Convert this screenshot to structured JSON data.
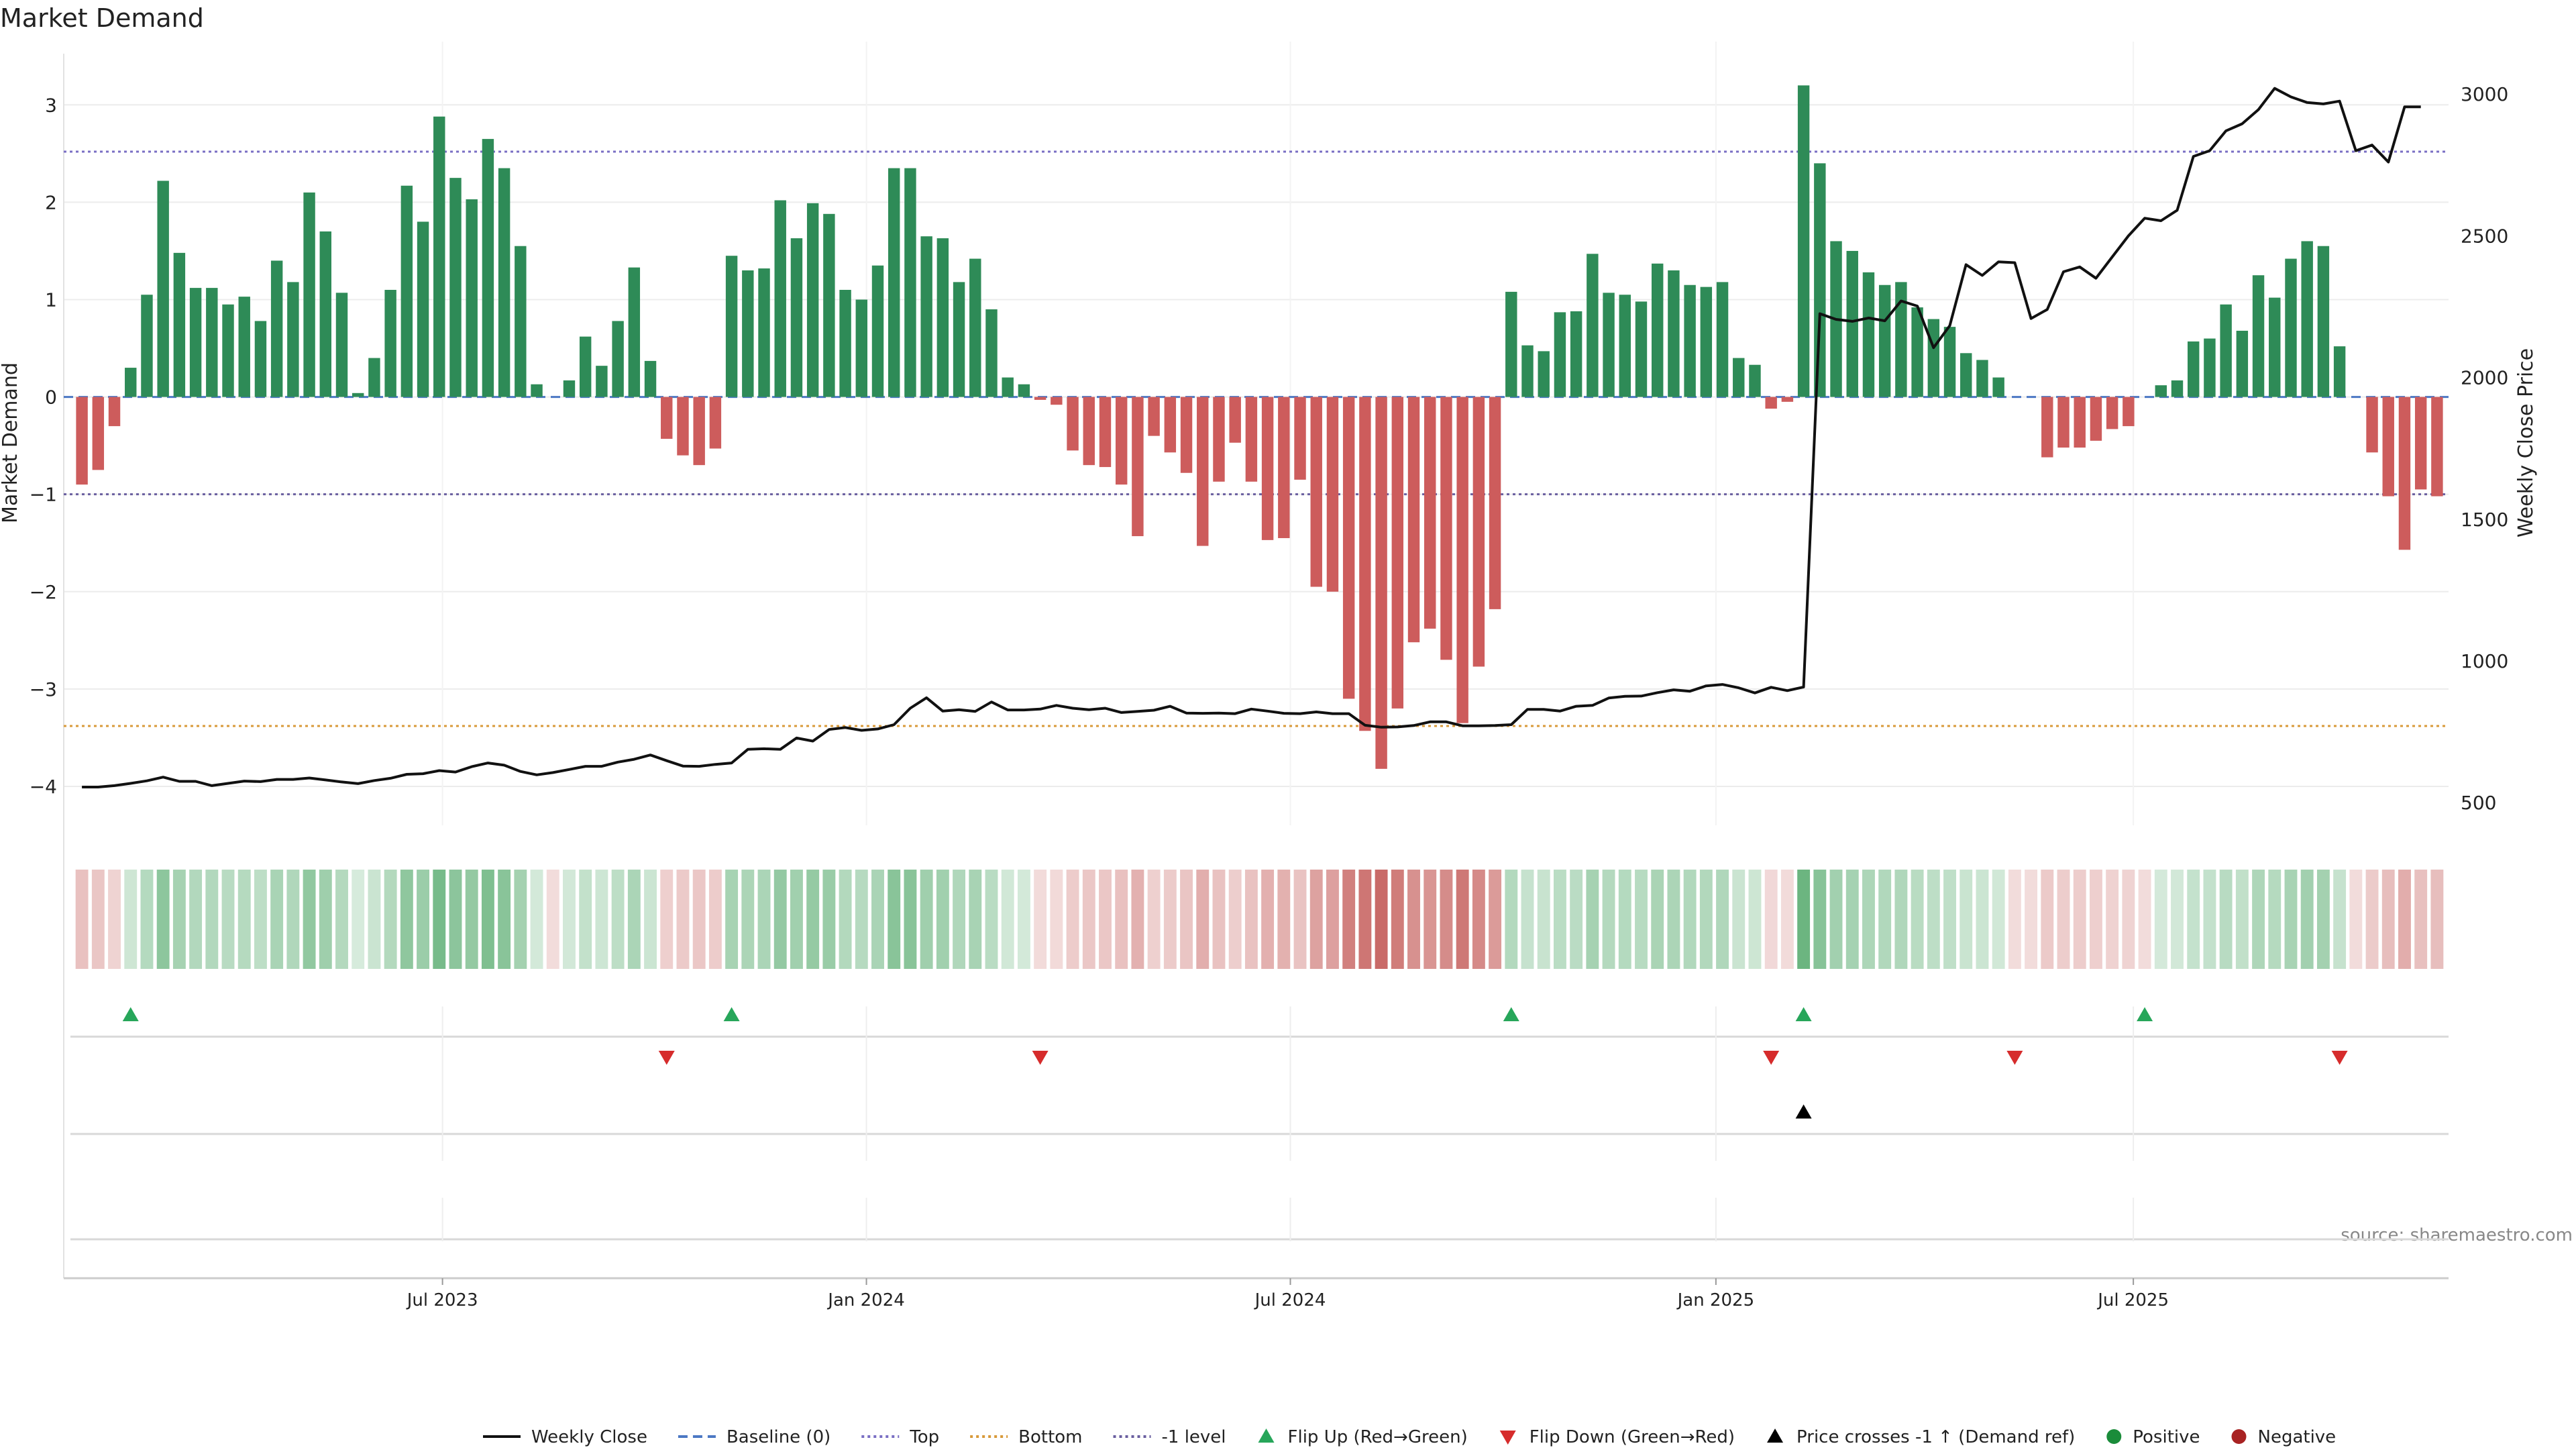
{
  "chart_data": {
    "type": "bar",
    "title": "Market Demand",
    "ylabel": "Market Demand",
    "y2label": "Weekly Close Price",
    "ylim": [
      -4.4,
      3.65
    ],
    "y2lim": [
      420,
      3185
    ],
    "yticks": [
      3,
      2,
      1,
      0,
      -1,
      -2,
      -3,
      -4
    ],
    "ytick_labels": [
      "3",
      "2",
      "1",
      "0",
      "−1",
      "−2",
      "−3",
      "−4"
    ],
    "y2ticks": [
      3000,
      2500,
      2000,
      1500,
      1000,
      500
    ],
    "y2tick_labels": [
      "3000",
      "2500",
      "2000",
      "1500",
      "1000",
      "500"
    ],
    "x_month_ticks": [
      {
        "index": 22.2,
        "label": "Jul 2023"
      },
      {
        "index": 48.3,
        "label": "Jan 2024"
      },
      {
        "index": 74.4,
        "label": "Jul 2024"
      },
      {
        "index": 100.6,
        "label": "Jan 2025"
      },
      {
        "index": 126.3,
        "label": "Jul 2025"
      }
    ],
    "reference_lines": {
      "top": 2.52,
      "bottom": -3.38,
      "minus_one": -1.0,
      "baseline": 0
    },
    "series": [
      {
        "name": "Market Demand",
        "values": [
          -0.9,
          -0.75,
          -0.3,
          0.3,
          1.05,
          2.22,
          1.48,
          1.12,
          1.12,
          0.95,
          1.03,
          0.78,
          1.4,
          1.18,
          2.1,
          1.7,
          1.07,
          0.04,
          0.4,
          1.1,
          2.17,
          1.8,
          2.88,
          2.25,
          2.03,
          2.65,
          2.35,
          1.55,
          0.13,
          0.0,
          0.17,
          0.62,
          0.32,
          0.78,
          1.33,
          0.37,
          -0.43,
          -0.6,
          -0.7,
          -0.53,
          1.45,
          1.3,
          1.32,
          2.02,
          1.63,
          1.99,
          1.88,
          1.1,
          1.0,
          1.35,
          2.35,
          2.35,
          1.65,
          1.63,
          1.18,
          1.42,
          0.9,
          0.2,
          0.13,
          -0.03,
          -0.08,
          -0.55,
          -0.7,
          -0.72,
          -0.9,
          -1.43,
          -0.4,
          -0.57,
          -0.78,
          -1.53,
          -0.87,
          -0.47,
          -0.87,
          -1.47,
          -1.45,
          -0.85,
          -1.95,
          -2.0,
          -3.1,
          -3.43,
          -3.82,
          -3.2,
          -2.52,
          -2.38,
          -2.7,
          -3.35,
          -2.77,
          -2.18,
          1.08,
          0.53,
          0.47,
          0.87,
          0.88,
          1.47,
          1.07,
          1.05,
          0.98,
          1.37,
          1.3,
          1.15,
          1.13,
          1.18,
          0.4,
          0.33,
          -0.12,
          -0.05,
          3.2,
          2.4,
          1.6,
          1.5,
          1.28,
          1.15,
          1.18,
          0.92,
          0.8,
          0.72,
          0.45,
          0.38,
          0.2,
          0.0,
          0.0,
          -0.62,
          -0.52,
          -0.52,
          -0.45,
          -0.33,
          -0.3,
          0.0,
          0.12,
          0.17,
          0.57,
          0.6,
          0.95,
          0.68,
          1.25,
          1.02,
          1.42,
          1.6,
          1.55,
          0.52,
          0.0,
          -0.57,
          -1.02,
          -1.57,
          -0.95,
          -1.02
        ]
      },
      {
        "name": "Weekly Close",
        "values": [
          555,
          555,
          560,
          568,
          577,
          590,
          575,
          575,
          560,
          568,
          576,
          574,
          582,
          582,
          587,
          580,
          573,
          567,
          578,
          586,
          600,
          602,
          613,
          608,
          627,
          640,
          632,
          610,
          598,
          606,
          617,
          628,
          628,
          643,
          653,
          668,
          648,
          629,
          628,
          635,
          640,
          688,
          690,
          688,
          728,
          717,
          758,
          765,
          755,
          760,
          775,
          833,
          870,
          823,
          828,
          822,
          855,
          827,
          827,
          830,
          843,
          833,
          828,
          833,
          818,
          822,
          826,
          840,
          816,
          815,
          816,
          814,
          830,
          823,
          815,
          814,
          820,
          814,
          814,
          773,
          766,
          767,
          772,
          785,
          785,
          771,
          771,
          772,
          775,
          829,
          829,
          823,
          840,
          843,
          869,
          875,
          876,
          888,
          898,
          893,
          912,
          917,
          905,
          887,
          907,
          895,
          908,
          2225,
          2205,
          2198,
          2210,
          2200,
          2270,
          2252,
          2105,
          2183,
          2398,
          2360,
          2408,
          2405,
          2208,
          2240,
          2373,
          2390,
          2350,
          2425,
          2500,
          2562,
          2553,
          2590,
          2780,
          2800,
          2870,
          2895,
          2945,
          3020,
          2990,
          2970,
          2965,
          2975,
          2800,
          2820,
          2760,
          2955,
          2955
        ]
      }
    ],
    "markers": {
      "flip_up": [
        3,
        40,
        88,
        106,
        127
      ],
      "flip_down": [
        36,
        59,
        104,
        119,
        139
      ],
      "price_cross": [
        106
      ]
    },
    "source_text": "source: sharemaestro.com",
    "legend_position": "bottom",
    "legend": [
      {
        "label": "Weekly Close",
        "kind": "line-solid",
        "color": "#111111"
      },
      {
        "label": "Baseline (0)",
        "kind": "line-dash",
        "color": "#4c78c4"
      },
      {
        "label": "Top",
        "kind": "line-dot",
        "color": "#7a6fc4"
      },
      {
        "label": "Bottom",
        "kind": "line-dot",
        "color": "#d89a3a"
      },
      {
        "label": "-1 level",
        "kind": "line-dot",
        "color": "#6a5fa0"
      },
      {
        "label": "Flip Up (Red→Green)",
        "kind": "tri-up",
        "color": "#27a65a"
      },
      {
        "label": "Flip Down (Green→Red)",
        "kind": "tri-down",
        "color": "#d62c2c"
      },
      {
        "label": "Price crosses -1 ↑ (Demand ref)",
        "kind": "tri-up",
        "color": "#000000"
      },
      {
        "label": "Positive",
        "kind": "dot",
        "color": "#1a8c3a"
      },
      {
        "label": "Negative",
        "kind": "dot",
        "color": "#a82222"
      }
    ]
  },
  "colors": {
    "positive_bar": "#2e8b57",
    "negative_bar": "#cd5c5c",
    "price_line": "#111111",
    "flip_up": "#27a65a",
    "flip_down": "#d62c2c",
    "price_cross": "#000000",
    "grid": "#ececec",
    "text": "#222222",
    "source": "#888888"
  }
}
